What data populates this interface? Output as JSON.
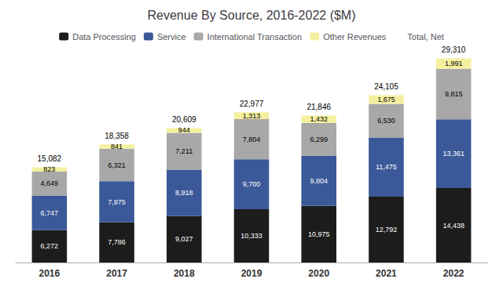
{
  "chart_data": {
    "type": "bar",
    "title": "Revenue By Source, 2016-2022 ($M)",
    "categories": [
      "2016",
      "2017",
      "2018",
      "2019",
      "2020",
      "2021",
      "2022"
    ],
    "stacked": true,
    "data_labels": true,
    "series": [
      {
        "name": "Data Processing",
        "color": "#1c1c1c",
        "values": [
          6272,
          7786,
          9027,
          10333,
          10975,
          12792,
          14438
        ],
        "value_labels": [
          "6,272",
          "7,786",
          "9,027",
          "10,333",
          "10,975",
          "12,792",
          "14,438"
        ]
      },
      {
        "name": "Service",
        "color": "#3b5998",
        "values": [
          6747,
          7975,
          8918,
          9700,
          9804,
          11475,
          13361
        ],
        "value_labels": [
          "6,747",
          "7,975",
          "8,918",
          "9,700",
          "9,804",
          "11,475",
          "13,361"
        ]
      },
      {
        "name": "International Transaction",
        "color": "#a8a8a8",
        "values": [
          4649,
          6321,
          7211,
          7804,
          6299,
          6530,
          9815
        ],
        "value_labels": [
          "4,649",
          "6,321",
          "7,211",
          "7,804",
          "6,299",
          "6,530",
          "9,815"
        ]
      },
      {
        "name": "Other Revenues",
        "color": "#f5f0a0",
        "values": [
          823,
          841,
          944,
          1313,
          1432,
          1675,
          1991
        ],
        "value_labels": [
          "823",
          "841",
          "944",
          "1,313",
          "1,432",
          "1,675",
          "1,991"
        ]
      }
    ],
    "totals": {
      "name": "Total, Net",
      "values": [
        15082,
        18358,
        20609,
        22977,
        21846,
        24105,
        29310
      ],
      "value_labels": [
        "15,082",
        "18,358",
        "20,609",
        "22,977",
        "21,846",
        "24,105",
        "29,310"
      ]
    },
    "ylim": [
      0,
      40000
    ],
    "legend": "top",
    "grid": false,
    "tick_labels": "x"
  }
}
